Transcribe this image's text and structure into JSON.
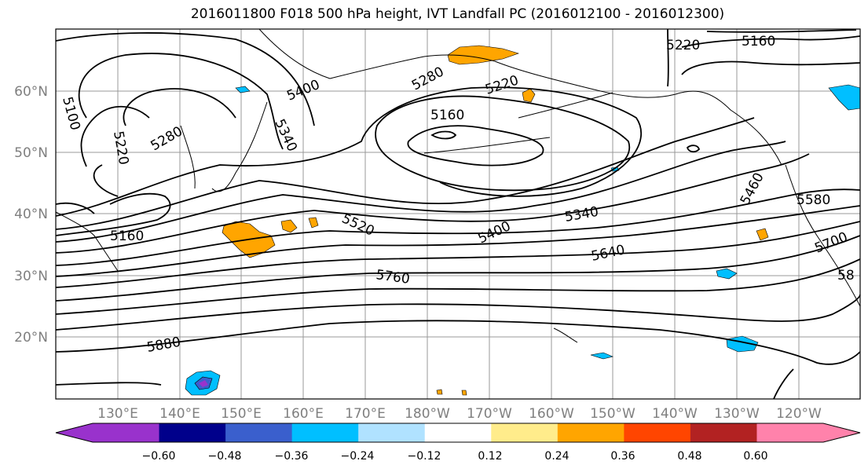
{
  "title": "2016011800 F018 500 hPa height, IVT Landfall PC (2016012100 - 2016012300)",
  "lat_labels": [
    "60°N",
    "50°N",
    "40°N",
    "30°N",
    "20°N"
  ],
  "lon_labels": [
    "130°E",
    "140°E",
    "150°E",
    "160°E",
    "170°E",
    "180°W",
    "170°W",
    "160°W",
    "150°W",
    "140°W",
    "130°W",
    "120°W"
  ],
  "contour_labels": [
    "5220",
    "5160",
    "5100",
    "5220",
    "5280",
    "5400",
    "5340",
    "5280",
    "5220",
    "5160",
    "5160",
    "5520",
    "5400",
    "5340",
    "5460",
    "5580",
    "5640",
    "5700",
    "5760",
    "5880",
    "58"
  ],
  "colorbar": {
    "colors": [
      "#9932cc",
      "#00008b",
      "#3a5fcd",
      "#00bfff",
      "#b0e2ff",
      "#ffffff",
      "#ffec8b",
      "#ffa500",
      "#ff4500",
      "#b22222",
      "#ff82ab"
    ],
    "ticks": [
      "−0.60",
      "−0.48",
      "−0.36",
      "−0.24",
      "−0.12",
      "0.12",
      "0.24",
      "0.36",
      "0.48",
      "0.60"
    ]
  },
  "colors": {
    "positive": "#ffa500",
    "negative": "#00bfff",
    "strong_negative": "#3a5fcd",
    "most_negative": "#9932cc",
    "grid": "#999999",
    "axis_label": "#7f7f7f"
  }
}
